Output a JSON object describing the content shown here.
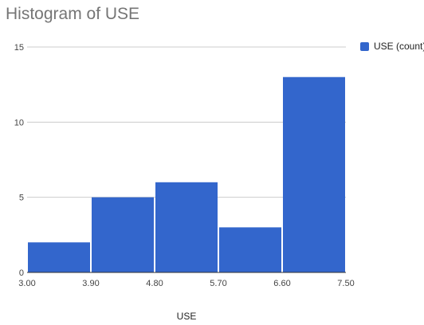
{
  "chart_data": {
    "type": "bar",
    "title": "Histogram of USE",
    "xlabel": "USE",
    "ylabel": "",
    "x_ticks": [
      "3.00",
      "3.90",
      "4.80",
      "5.70",
      "6.60",
      "7.50"
    ],
    "y_ticks": [
      "0",
      "5",
      "10",
      "15"
    ],
    "ylim": [
      0,
      15
    ],
    "xlim": [
      3.0,
      7.5
    ],
    "bins": [
      {
        "start": 3.0,
        "end": 3.9,
        "count": 2
      },
      {
        "start": 3.9,
        "end": 4.8,
        "count": 5
      },
      {
        "start": 4.8,
        "end": 5.7,
        "count": 6
      },
      {
        "start": 5.7,
        "end": 6.6,
        "count": 3
      },
      {
        "start": 6.6,
        "end": 7.5,
        "count": 13
      }
    ],
    "series": [
      {
        "name": "USE (count)",
        "values": [
          2,
          5,
          6,
          3,
          13
        ]
      }
    ],
    "colors": {
      "bar": "#3366cc",
      "grid": "#cccccc",
      "axis": "#333333",
      "tick_label": "#444444"
    },
    "grid": true,
    "legend_position": "top-right"
  }
}
